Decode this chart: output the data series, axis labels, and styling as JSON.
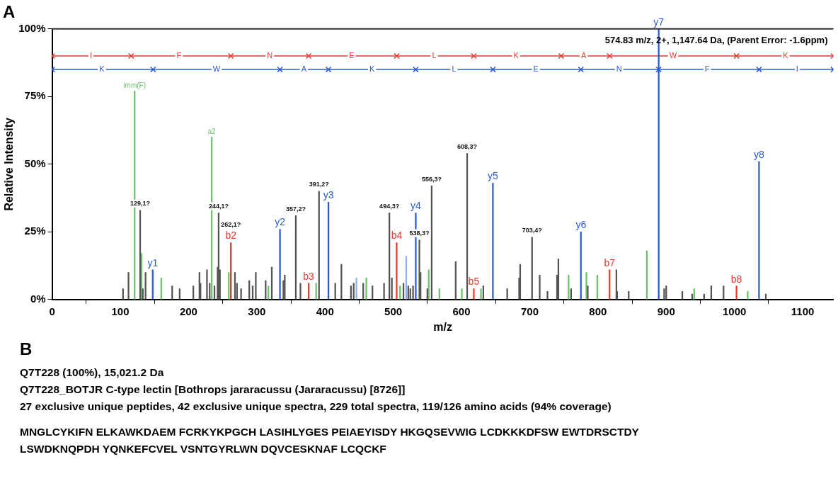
{
  "chart_data": {
    "type": "bar",
    "title": "A",
    "xlabel": "m/z",
    "ylabel": "Relative Intensity",
    "xlim": [
      0,
      1145
    ],
    "xticks": [
      0,
      100,
      200,
      300,
      400,
      500,
      600,
      700,
      800,
      900,
      1000,
      1100
    ],
    "ylim": [
      0,
      100
    ],
    "yticks": [
      {
        "value": 0,
        "label": "0%"
      },
      {
        "value": 25,
        "label": "25%"
      },
      {
        "value": 50,
        "label": "50%"
      },
      {
        "value": 75,
        "label": "75%"
      },
      {
        "value": 100,
        "label": "100%"
      }
    ],
    "grid": false,
    "legend": false,
    "series": [
      {
        "color": "#555555",
        "x": [
          104,
          112,
          129.1,
          133,
          137,
          176,
          187,
          207,
          216,
          217.5,
          226,
          227,
          231,
          238,
          242.6,
          244.1,
          246,
          268,
          271,
          277,
          289,
          294,
          298.6,
          313,
          322,
          339,
          341,
          357.2,
          364,
          391.2,
          415,
          424,
          438,
          442,
          456,
          469.5,
          486.5,
          494.3,
          498,
          515,
          522,
          525,
          529,
          538.3,
          540,
          550,
          556.3,
          591.5,
          607,
          608.3,
          632,
          667,
          684.5,
          686,
          703.4,
          714.6,
          726,
          740,
          742,
          760.6,
          785,
          827,
          828,
          845,
          897,
          900,
          923.6,
          938,
          955.5,
          966,
          984,
          1046
        ],
        "values": [
          4,
          10,
          33,
          4,
          10,
          5,
          4,
          5,
          10,
          6,
          null,
          11,
          6,
          5,
          12,
          32,
          11,
          10,
          6,
          4,
          7,
          5,
          10,
          7,
          12,
          7,
          9,
          31,
          6,
          40,
          6,
          13,
          5,
          6,
          6,
          5,
          6,
          32,
          8,
          6,
          5,
          4,
          5,
          22,
          10,
          4,
          42,
          14,
          null,
          54,
          5,
          4,
          8,
          13,
          23,
          9,
          3,
          9,
          15,
          4,
          5,
          11,
          3,
          3,
          4,
          5,
          3,
          2,
          2,
          5,
          5,
          2
        ]
      },
      {
        "color": "#6cc36c",
        "x": [
          121,
          131,
          160,
          234,
          259,
          317,
          387,
          460.5,
          488,
          510,
          552,
          567.6,
          600.5,
          628.5,
          757,
          783,
          799,
          871.6,
          941,
          1019.5
        ],
        "values": [
          77,
          17,
          8,
          60,
          10,
          5,
          6,
          8,
          null,
          5,
          11,
          4,
          4,
          4,
          9,
          10,
          9,
          18,
          4,
          3
        ],
        "value_labels": [
          "imm(F)",
          null,
          null,
          "a2",
          null,
          null,
          null,
          null,
          null,
          null,
          null,
          null,
          null,
          null,
          null,
          null,
          null,
          null,
          null,
          null
        ]
      },
      {
        "color": "#8fb0f0",
        "x": [
          446,
          519
        ],
        "values": [
          8,
          16
        ]
      },
      {
        "color": "#2a5bd7",
        "x": [
          147.5,
          334,
          405,
          533,
          646,
          775,
          889,
          1036
        ],
        "values": [
          11,
          26,
          36,
          32,
          43,
          25,
          100,
          51
        ],
        "value_labels": [
          "y1",
          "y2",
          "y3",
          "y4",
          "y5",
          "y6",
          "y7",
          "y8"
        ]
      },
      {
        "color": "#e8392f",
        "x": [
          262,
          376,
          505,
          618,
          817,
          1003
        ],
        "values": [
          21,
          6,
          21,
          4,
          11,
          5
        ],
        "value_labels": [
          "b2",
          "b3",
          "b4",
          "b5",
          "b7",
          "b8"
        ]
      },
      {
        "type": "line",
        "color": "#e8392f",
        "marker": "cross",
        "x": [
          0,
          116,
          262,
          376,
          505,
          618,
          746,
          817,
          1003,
          1145
        ],
        "values": [
          90,
          90,
          90,
          90,
          90,
          90,
          90,
          90,
          90,
          90
        ]
      },
      {
        "type": "line",
        "color": "#2a5bd7",
        "marker": "cross",
        "x": [
          0,
          148,
          334,
          405,
          533,
          646,
          775,
          889,
          1036,
          1145
        ],
        "values": [
          85,
          85,
          85,
          85,
          85,
          85,
          85,
          85,
          85,
          85
        ]
      }
    ],
    "annotations": [
      "574.83 m/z, 2+, 1,147.64 Da, (Parent Error: -1.6ppm)",
      {
        "text": "129,1?",
        "x": 129.1,
        "y": 33
      },
      {
        "text": "244,1?",
        "x": 244.1,
        "y": 32
      },
      {
        "text": "262,1?",
        "x": 262,
        "y": 21
      },
      {
        "text": "357,2?",
        "x": 357.2,
        "y": 31
      },
      {
        "text": "391,2?",
        "x": 391.2,
        "y": 40
      },
      {
        "text": "494,3?",
        "x": 494.3,
        "y": 32
      },
      {
        "text": "538,3?",
        "x": 538.3,
        "y": 22
      },
      {
        "text": "556,3?",
        "x": 556.3,
        "y": 42
      },
      {
        "text": "608,3?",
        "x": 608.3,
        "y": 54
      },
      {
        "text": "703,4?",
        "x": 703.4,
        "y": 23
      },
      {
        "text": "I",
        "x": 57,
        "y": 90
      },
      {
        "text": "F",
        "x": 186,
        "y": 90
      },
      {
        "text": "N",
        "x": 319,
        "y": 90
      },
      {
        "text": "E",
        "x": 439,
        "y": 90
      },
      {
        "text": "L",
        "x": 560,
        "y": 90
      },
      {
        "text": "K",
        "x": 680,
        "y": 90
      },
      {
        "text": "A",
        "x": 779,
        "y": 90
      },
      {
        "text": "W",
        "x": 910,
        "y": 90
      },
      {
        "text": "K",
        "x": 1075,
        "y": 90
      },
      {
        "text": "K",
        "x": 73,
        "y": 85
      },
      {
        "text": "W",
        "x": 241,
        "y": 85
      },
      {
        "text": "A",
        "x": 369,
        "y": 85
      },
      {
        "text": "K",
        "x": 469,
        "y": 85
      },
      {
        "text": "L",
        "x": 589,
        "y": 85
      },
      {
        "text": "E",
        "x": 709,
        "y": 85
      },
      {
        "text": "N",
        "x": 831,
        "y": 85
      },
      {
        "text": "F",
        "x": 960,
        "y": 85
      },
      {
        "text": "I",
        "x": 1092,
        "y": 85
      },
      "B",
      "Q7T228 (100%), 15,021.2 Da",
      "Q7T228_BOTJR C-type lectin [Bothrops jararacussu (Jararacussu) [8726]]",
      "27 exclusive unique peptides, 42 exclusive unique spectra, 229 total spectra, 119/126 amino acids (94% coverage)",
      "MNGLCYKIFN ELKAWKDAEM FCRKYKPGCH LASIHLYGES PEIAEYISDY HKGQSEVWIG LCDKKKDFSW EWTDRSCTDY",
      "LSWDKNQPDH YQNKEFCVEL VSNTGYRLWN DQVCESKNAF LCQCKF"
    ]
  }
}
